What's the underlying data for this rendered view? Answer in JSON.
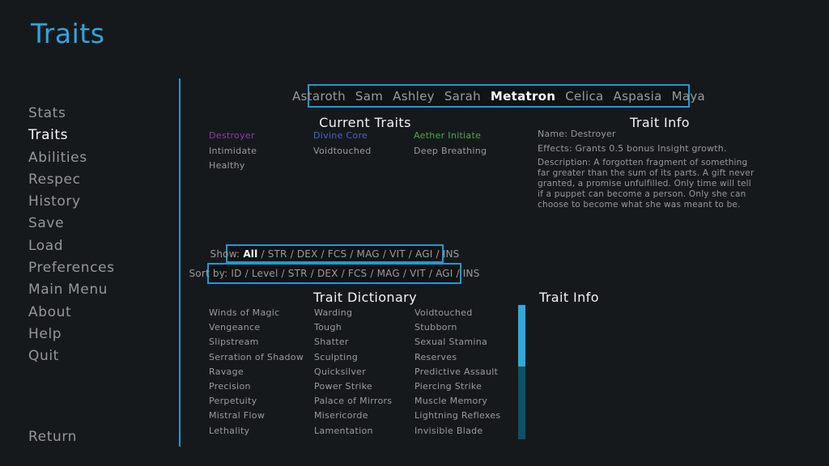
{
  "page": {
    "title": "Traits"
  },
  "colors": {
    "background": "#16191b",
    "accent_cyan_border": "#1d9bd1",
    "title_cyan": "#2da7e0",
    "selected_text": "#fafafa",
    "muted_text": "#9a9a9a",
    "trait_purple": "#9139b0",
    "trait_blue": "#4565cd",
    "trait_green": "#3fae4f",
    "scrollbar_thumb": "#2fa9da",
    "scrollbar_track": "#0d5068"
  },
  "sidebar": {
    "items": [
      "Stats",
      "Traits",
      "Abilities",
      "Respec",
      "History",
      "Save",
      "Load",
      "Preferences",
      "Main Menu",
      "About",
      "Help",
      "Quit"
    ],
    "selected": "Traits",
    "return_label": "Return"
  },
  "character_selector": {
    "characters": [
      "Astaroth",
      "Sam",
      "Ashley",
      "Sarah",
      "Metatron",
      "Celica",
      "Aspasia",
      "Maya"
    ],
    "selected": "Metatron"
  },
  "current_traits": {
    "heading": "Current Traits",
    "columns": [
      [
        {
          "name": "Destroyer",
          "color": "#9139b0"
        },
        {
          "name": "Intimidate",
          "color": "#9a9a9a"
        },
        {
          "name": "Healthy",
          "color": "#9a9a9a"
        }
      ],
      [
        {
          "name": "Divine Core",
          "color": "#4565cd"
        },
        {
          "name": "Voidtouched",
          "color": "#9a9a9a"
        }
      ],
      [
        {
          "name": "Aether Initiate",
          "color": "#3fae4f"
        },
        {
          "name": "Deep Breathing",
          "color": "#9a9a9a"
        }
      ]
    ]
  },
  "trait_info": {
    "heading": "Trait Info",
    "name": "Name: Destroyer",
    "effects": "Effects: Grants 0.5 bonus Insight growth.",
    "description": "Description: A forgotten fragment of something far greater than the sum of its parts. A gift never granted, a promise unfulfilled. Only time will tell if a puppet can become a person. Only she can choose to become what she was meant to be."
  },
  "filters": {
    "show_label": "Show: ",
    "show_selected": "All",
    "show_rest": " / STR / DEX / FCS / MAG / VIT / AGI / INS",
    "sort_text": "Sort by: ID / Level / STR / DEX / FCS / MAG / VIT / AGI / INS"
  },
  "trait_dictionary": {
    "heading": "Trait Dictionary",
    "columns": [
      [
        "Winds of Magic",
        "Vengeance",
        "Slipstream",
        "Serration of Shadow",
        "Ravage",
        "Precision",
        "Perpetuity",
        "Mistral Flow",
        "Lethality"
      ],
      [
        "Warding",
        "Tough",
        "Shatter",
        "Sculpting",
        "Quicksilver",
        "Power Strike",
        "Palace of Mirrors",
        "Misericorde",
        "Lamentation"
      ],
      [
        "Voidtouched",
        "Stubborn",
        "Sexual Stamina",
        "Reserves",
        "Predictive Assault",
        "Piercing Strike",
        "Muscle Memory",
        "Lightning Reflexes",
        "Invisible Blade"
      ]
    ]
  },
  "trait_info_panel2": {
    "heading": "Trait Info"
  }
}
